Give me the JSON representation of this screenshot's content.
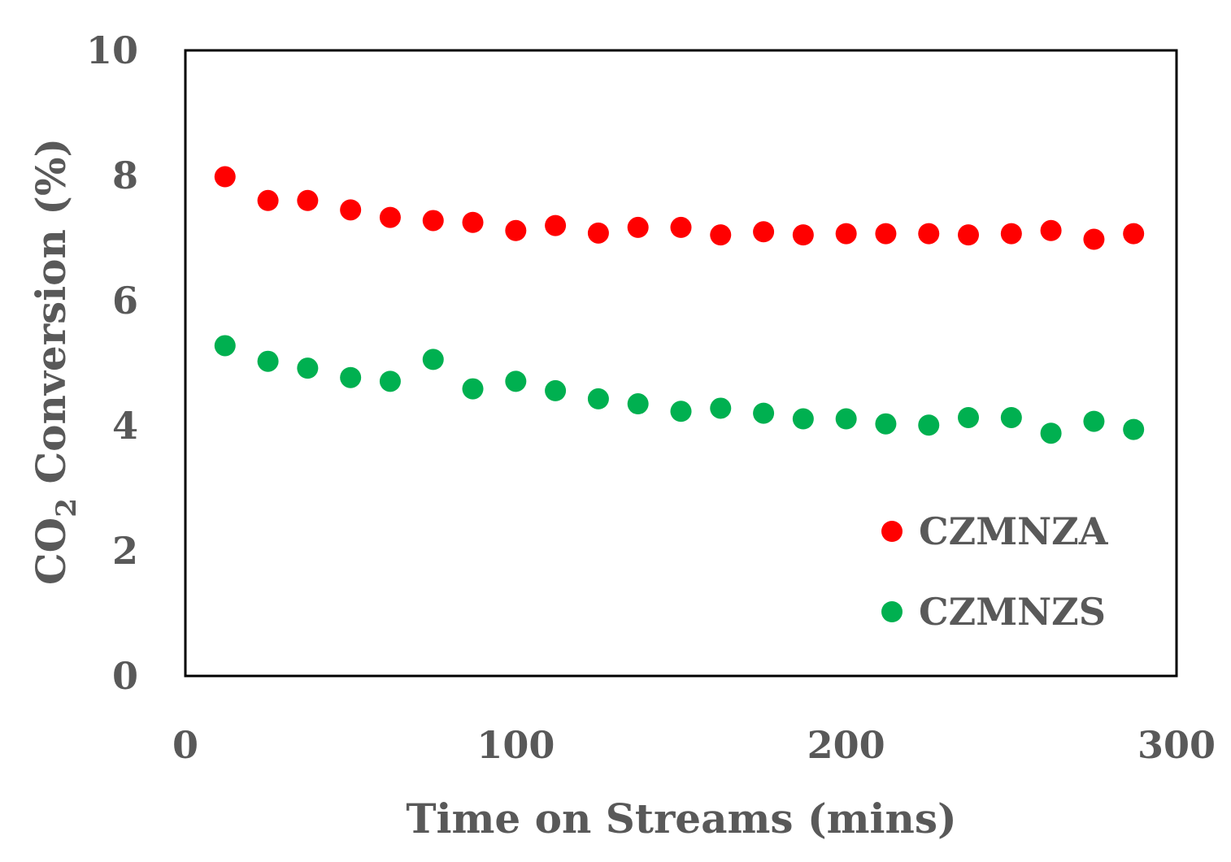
{
  "chart_data": {
    "type": "scatter",
    "title": "",
    "xlabel": "Time on Streams (mins)",
    "ylabel_main": "CO",
    "ylabel_sub": "2",
    "ylabel_rest": " Conversion (%)",
    "xlim": [
      0,
      300
    ],
    "ylim": [
      0,
      10
    ],
    "x_ticks": [
      0,
      100,
      200,
      300
    ],
    "y_ticks": [
      0,
      2,
      4,
      6,
      8,
      10
    ],
    "grid": false,
    "legend_position": "bottom-right",
    "x": [
      12,
      25,
      37,
      50,
      62,
      75,
      87,
      100,
      112,
      125,
      137,
      150,
      162,
      175,
      187,
      200,
      212,
      225,
      237,
      250,
      262,
      275,
      287
    ],
    "series": [
      {
        "name": "CZMNZA",
        "color": "#ff0000",
        "values": [
          7.98,
          7.6,
          7.6,
          7.45,
          7.33,
          7.28,
          7.25,
          7.12,
          7.2,
          7.08,
          7.17,
          7.17,
          7.05,
          7.1,
          7.05,
          7.07,
          7.07,
          7.07,
          7.05,
          7.07,
          7.12,
          6.98,
          7.07
        ]
      },
      {
        "name": "CZMNZS",
        "color": "#00b050",
        "values": [
          5.28,
          5.03,
          4.92,
          4.77,
          4.71,
          5.06,
          4.59,
          4.71,
          4.56,
          4.43,
          4.35,
          4.23,
          4.28,
          4.2,
          4.11,
          4.11,
          4.03,
          4.01,
          4.13,
          4.13,
          3.88,
          4.07,
          3.94
        ]
      }
    ]
  }
}
